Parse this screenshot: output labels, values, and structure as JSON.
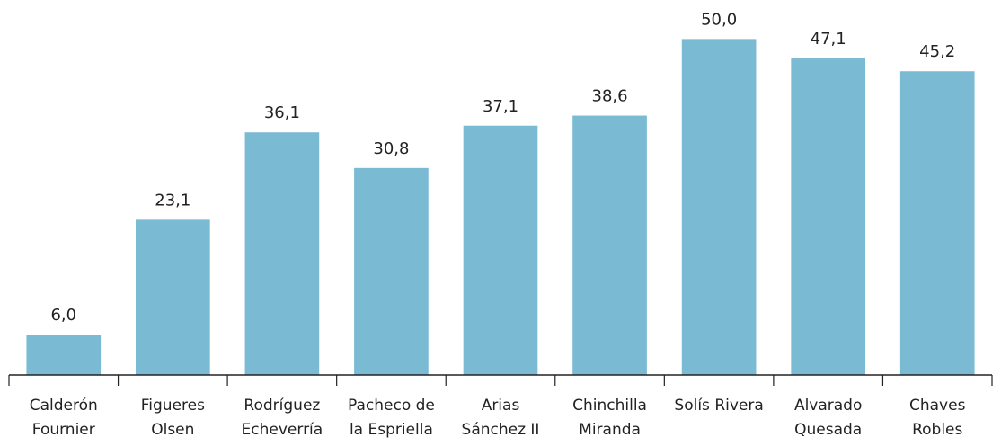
{
  "chart_data": {
    "type": "bar",
    "categories": [
      "Calderón\nFournier",
      "Figueres\nOlsen",
      "Rodríguez\nEcheverría",
      "Pacheco de\nla Espriella",
      "Arias\nSánchez II",
      "Chinchilla\nMiranda",
      "Solís Rivera",
      "Alvarado\nQuesada",
      "Chaves\nRobles"
    ],
    "values": [
      6.0,
      23.1,
      36.1,
      30.8,
      37.1,
      38.6,
      50.0,
      47.1,
      45.2
    ],
    "value_labels": [
      "6,0",
      "23,1",
      "36,1",
      "30,8",
      "37,1",
      "38,6",
      "50,0",
      "47,1",
      "45,2"
    ],
    "color": "#7bbad3",
    "ylim": [
      0,
      55
    ]
  }
}
